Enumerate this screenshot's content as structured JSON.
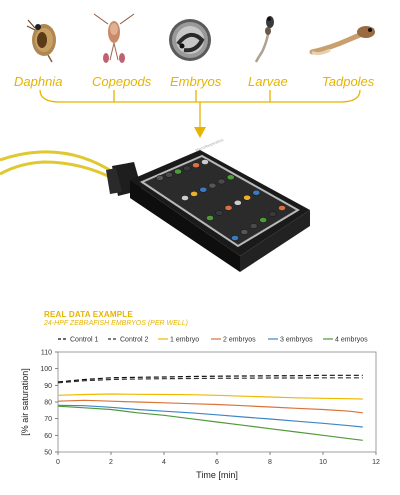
{
  "organisms": [
    {
      "name": "Daphnia",
      "icon": "daphnia-icon"
    },
    {
      "name": "Copepods",
      "icon": "copepod-icon"
    },
    {
      "name": "Embryos",
      "icon": "embryo-icon"
    },
    {
      "name": "Larvae",
      "icon": "larva-icon"
    },
    {
      "name": "Tadpoles",
      "icon": "tadpole-icon"
    }
  ],
  "accent_color": "#e6b400",
  "example": {
    "title": "REAL DATA EXAMPLE",
    "subtitle": "24-HPF ZEBRAFISH EMBRYOS (PER WELL)"
  },
  "chart_data": {
    "type": "line",
    "title": "",
    "xlabel": "Time [min]",
    "ylabel": "[% air saturation]",
    "xlim": [
      0,
      12
    ],
    "ylim": [
      50,
      110
    ],
    "xticks": [
      0,
      2,
      4,
      6,
      8,
      10,
      12
    ],
    "yticks": [
      50,
      60,
      70,
      80,
      90,
      100,
      110
    ],
    "legend_position": "top",
    "grid": false,
    "series": [
      {
        "name": "Control 1",
        "color": "#111111",
        "dash": "5,3",
        "x": [
          0,
          1,
          2,
          3,
          4,
          5,
          6,
          7,
          8,
          9,
          10,
          11,
          11.5
        ],
        "values": [
          92,
          93.5,
          94.5,
          94.8,
          95,
          95.3,
          95.5,
          95.6,
          95.7,
          95.8,
          96,
          96,
          96
        ]
      },
      {
        "name": "Control 2",
        "color": "#333333",
        "dash": "5,3",
        "x": [
          0,
          1,
          2,
          3,
          4,
          5,
          6,
          7,
          8,
          9,
          10,
          11,
          11.5
        ],
        "values": [
          91.5,
          92.8,
          93.5,
          93.8,
          94,
          94.1,
          94.2,
          94.3,
          94.4,
          94.4,
          94.5,
          94.5,
          94.5
        ]
      },
      {
        "name": "1 embryo",
        "color": "#f2b800",
        "x": [
          0,
          1,
          2,
          3,
          4,
          5,
          6,
          7,
          8,
          9,
          10,
          11,
          11.5
        ],
        "values": [
          84,
          84.5,
          84.8,
          84.6,
          84.5,
          84.4,
          84,
          83.5,
          83,
          82.5,
          82.2,
          82,
          81.8
        ]
      },
      {
        "name": "2 embryos",
        "color": "#d9733a",
        "x": [
          0,
          1,
          2,
          3,
          4,
          5,
          6,
          7,
          8,
          9,
          10,
          11,
          11.5
        ],
        "values": [
          80.5,
          81,
          80.5,
          80,
          79.5,
          79,
          78.5,
          77.8,
          77,
          76.2,
          75.5,
          74.5,
          73.5
        ]
      },
      {
        "name": "3 embryos",
        "color": "#3e86c6",
        "x": [
          0,
          1,
          2,
          3,
          4,
          5,
          6,
          7,
          8,
          9,
          10,
          11,
          11.5
        ],
        "values": [
          78,
          77.8,
          76.8,
          75.5,
          74.5,
          73.5,
          72.3,
          71,
          69.8,
          68.5,
          67.2,
          65.8,
          65
        ]
      },
      {
        "name": "4 embryos",
        "color": "#4e9a3a",
        "x": [
          0,
          1,
          2,
          3,
          4,
          5,
          6,
          7,
          8,
          9,
          10,
          11,
          11.5
        ],
        "values": [
          77.5,
          76.5,
          75.5,
          73.5,
          72,
          70,
          68,
          66,
          64,
          62,
          60,
          58,
          57
        ]
      }
    ]
  }
}
